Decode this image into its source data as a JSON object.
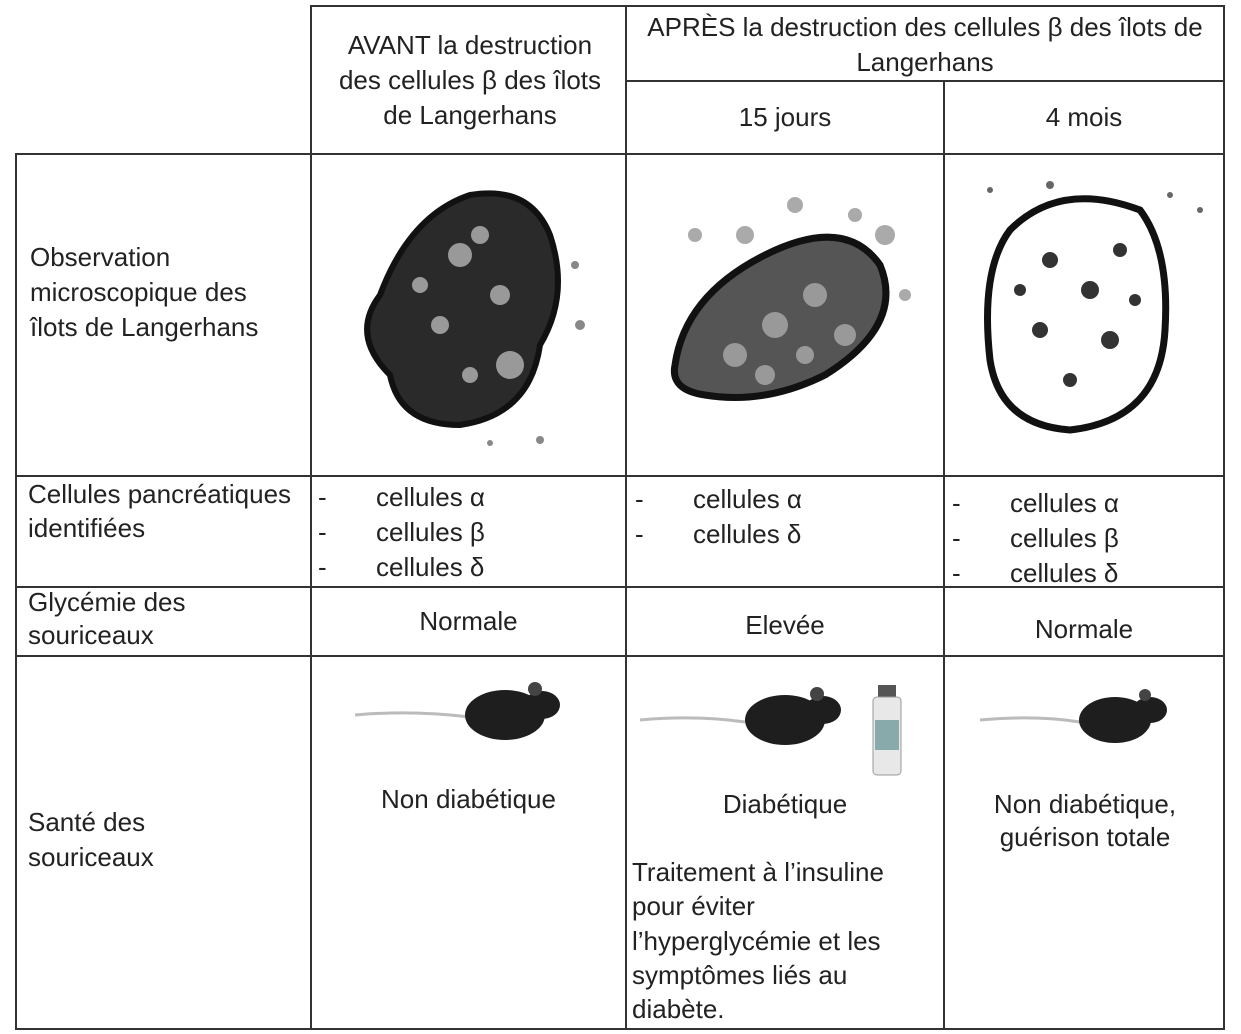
{
  "header": {
    "before": "AVANT la destruction des cellules β des îlots de Langerhans",
    "after": "APRÈS la destruction des cellules β des îlots de Langerhans",
    "after_15": "15 jours",
    "after_4": "4 mois"
  },
  "rows": {
    "observation": {
      "label": "Observation microscopique des îlots de Langerhans"
    },
    "cells": {
      "label": "Cellules pancréatiques identifiées",
      "before": [
        "cellules α",
        "cellules β",
        "cellules δ"
      ],
      "after_15": [
        "cellules α",
        "cellules δ"
      ],
      "after_4": [
        "cellules α",
        "cellules β",
        "cellules δ"
      ]
    },
    "glycemia": {
      "label": "Glycémie des souriceaux",
      "before": "Normale",
      "after_15": "Elevée",
      "after_4": "Normale"
    },
    "health": {
      "label": "Santé des souriceaux",
      "before": "Non diabétique",
      "after_15": "Diabétique",
      "after_15_note": "Traitement à l’insuline pour éviter l’hyperglycémie et les symptômes liés au diabète.",
      "after_4": "Non diabétique, guérison totale"
    }
  }
}
